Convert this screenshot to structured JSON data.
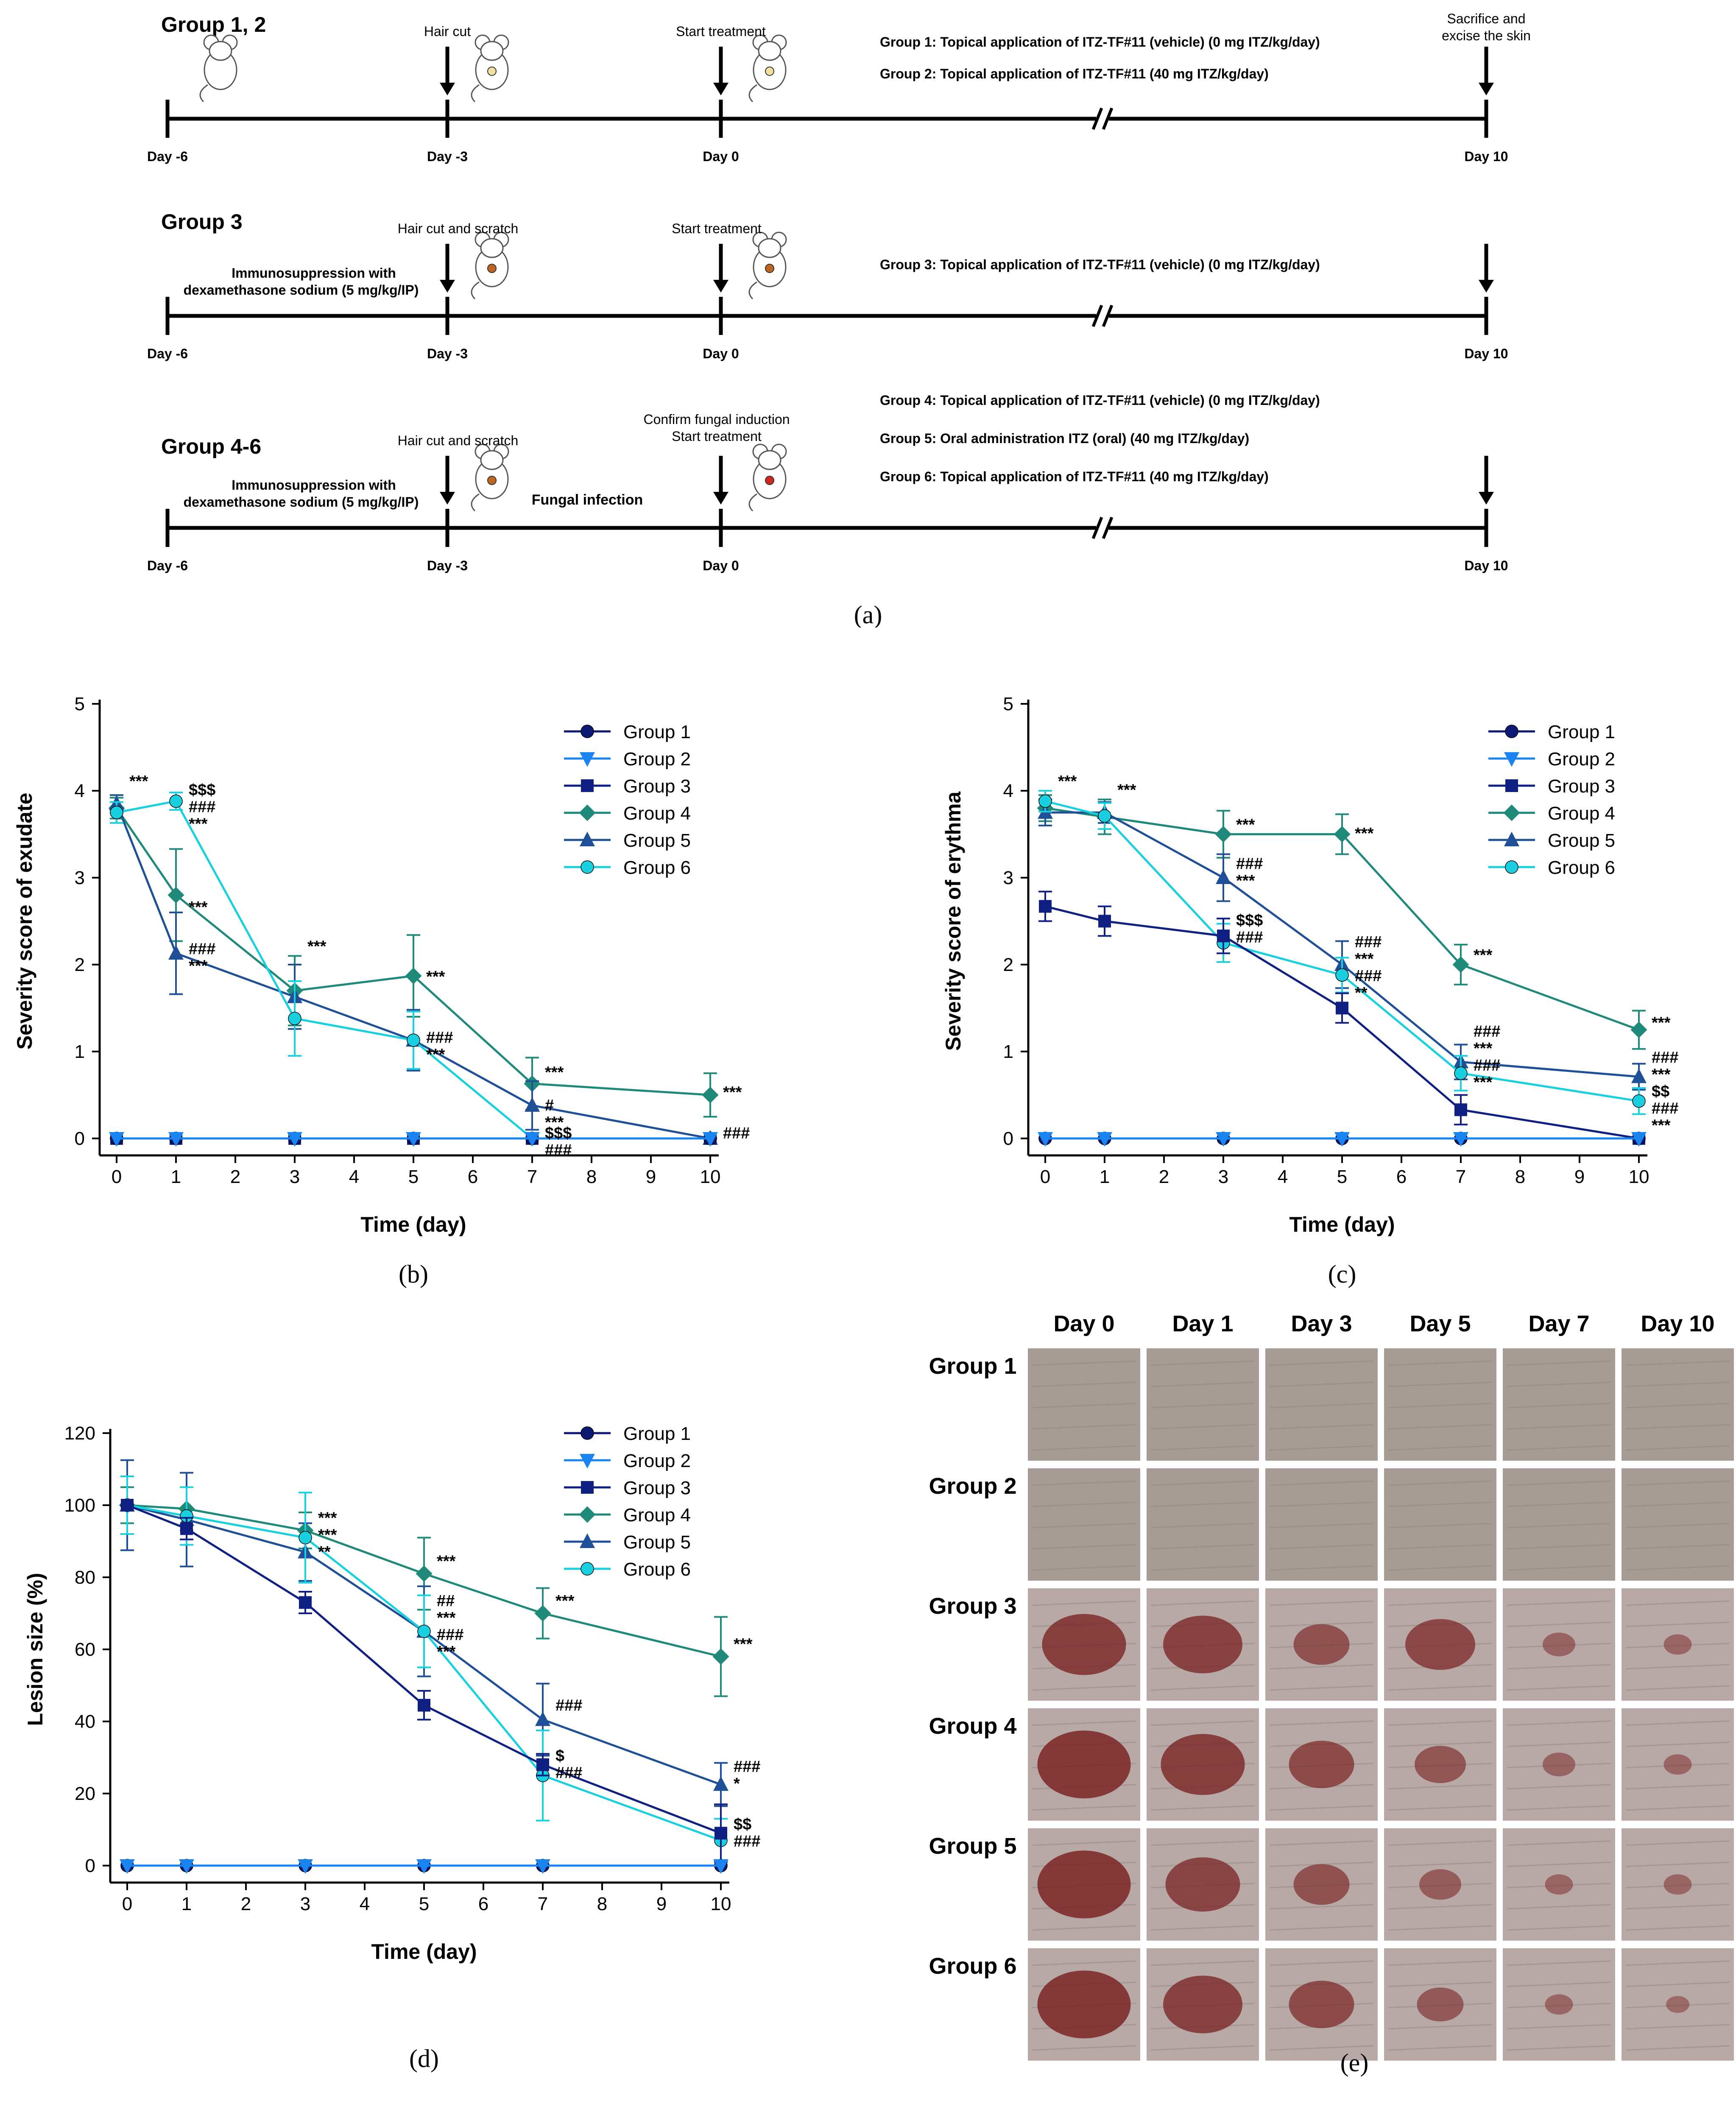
{
  "colors": {
    "g1": "#0d1a73",
    "g2": "#1a85f0",
    "g3": "#0f1f82",
    "g4": "#1f8a7a",
    "g5": "#1f4f96",
    "g6": "#19d0e0",
    "skin": "#a79d96",
    "wound": "#7a2424"
  },
  "panel_a": {
    "caption": "(a)",
    "rows": [
      {
        "group_label": "Group 1, 2",
        "ticks": [
          "Day -6",
          "Day -3",
          "Day 0",
          "Day 10"
        ],
        "arrow_labels": [
          "Hair cut",
          "Start treatment",
          "Sacrifice and",
          "excise the skin"
        ],
        "treatments": [
          "Group 1: Topical application of ITZ-TF#11 (vehicle) (0 mg ITZ/kg/day)",
          "Group 2: Topical application of ITZ-TF#11 (40 mg ITZ/kg/day)"
        ]
      },
      {
        "group_label": "Group 3",
        "ticks": [
          "Day -6",
          "Day -3",
          "Day 0",
          "Day 10"
        ],
        "arrow_labels": [
          "Hair cut and scratch",
          "Start treatment"
        ],
        "immuno": [
          "Immunosuppression with",
          "dexamethasone sodium (5 mg/kg/IP)"
        ],
        "treatments": [
          "Group 3: Topical application of ITZ-TF#11 (vehicle) (0 mg ITZ/kg/day)"
        ]
      },
      {
        "group_label": "Group 4-6",
        "ticks": [
          "Day -6",
          "Day -3",
          "Day 0",
          "Day 10"
        ],
        "arrow_labels": [
          "Hair cut and scratch",
          "Confirm  fungal induction",
          "Start treatment"
        ],
        "immuno": [
          "Immunosuppression with",
          "dexamethasone sodium (5 mg/kg/IP)"
        ],
        "infection": "Fungal infection",
        "treatments": [
          "Group 4: Topical application of ITZ-TF#11 (vehicle) (0 mg ITZ/kg/day)",
          "Group 5: Oral administration ITZ (oral) (40 mg ITZ/kg/day)",
          "Group 6: Topical application of ITZ-TF#11 (40 mg ITZ/kg/day)"
        ]
      }
    ]
  },
  "chart_data": [
    {
      "id": "b",
      "type": "line",
      "caption": "(b)",
      "xlabel": "Time (day)",
      "ylabel": "Severity score of exudate",
      "xlim": [
        0,
        10
      ],
      "ylim": [
        0,
        5
      ],
      "xticks": [
        0,
        1,
        2,
        3,
        4,
        5,
        6,
        7,
        8,
        9,
        10
      ],
      "yticks": [
        0,
        1,
        2,
        3,
        4,
        5
      ],
      "legend": [
        "Group 1",
        "Group 2",
        "Group 3",
        "Group 4",
        "Group 5",
        "Group 6"
      ],
      "series": [
        {
          "name": "Group 1",
          "x": [
            0,
            1,
            3,
            5,
            7,
            10
          ],
          "y": [
            0,
            0,
            0,
            0,
            0,
            0
          ],
          "err": [
            0,
            0,
            0,
            0,
            0,
            0
          ]
        },
        {
          "name": "Group 2",
          "x": [
            0,
            1,
            3,
            5,
            7,
            10
          ],
          "y": [
            0,
            0,
            0,
            0,
            0,
            0
          ],
          "err": [
            0,
            0,
            0,
            0,
            0,
            0
          ]
        },
        {
          "name": "Group 3",
          "x": [
            0,
            1,
            3,
            5,
            7,
            10
          ],
          "y": [
            0,
            0,
            0,
            0,
            0,
            0
          ],
          "err": [
            0,
            0,
            0,
            0,
            0,
            0
          ]
        },
        {
          "name": "Group 4",
          "x": [
            0,
            1,
            3,
            5,
            7,
            10
          ],
          "y": [
            3.8,
            2.8,
            1.7,
            1.87,
            0.63,
            0.5
          ],
          "err": [
            0.12,
            0.53,
            0.4,
            0.47,
            0.3,
            0.25
          ]
        },
        {
          "name": "Group 5",
          "x": [
            0,
            1,
            3,
            5,
            7,
            10
          ],
          "y": [
            3.85,
            2.13,
            1.63,
            1.13,
            0.38,
            0
          ],
          "err": [
            0.1,
            0.47,
            0.37,
            0.35,
            0.28,
            0
          ]
        },
        {
          "name": "Group 6",
          "x": [
            0,
            1,
            3,
            5,
            7,
            10
          ],
          "y": [
            3.75,
            3.88,
            1.38,
            1.13,
            0,
            0
          ],
          "err": [
            0.12,
            0.1,
            0.43,
            0.33,
            0,
            0
          ]
        }
      ],
      "annotations": [
        {
          "x": 0,
          "y": 4.05,
          "lines": [
            "***"
          ]
        },
        {
          "x": 1,
          "y": 3.95,
          "lines": [
            "$$$",
            "###",
            "***"
          ]
        },
        {
          "x": 1,
          "y": 2.6,
          "lines": [
            "***"
          ]
        },
        {
          "x": 1,
          "y": 2.12,
          "lines": [
            "###",
            "***"
          ]
        },
        {
          "x": 3,
          "y": 2.15,
          "lines": [
            "***"
          ]
        },
        {
          "x": 5,
          "y": 1.8,
          "lines": [
            "***"
          ]
        },
        {
          "x": 5,
          "y": 1.1,
          "lines": [
            "###",
            "***"
          ]
        },
        {
          "x": 7,
          "y": 0.7,
          "lines": [
            "***"
          ]
        },
        {
          "x": 7,
          "y": 0.32,
          "lines": [
            "#",
            "***"
          ]
        },
        {
          "x": 7,
          "y": 0,
          "lines": [
            "$$$",
            "###"
          ]
        },
        {
          "x": 10,
          "y": 0.47,
          "lines": [
            "***"
          ]
        },
        {
          "x": 10,
          "y": 0,
          "lines": [
            "###"
          ]
        }
      ]
    },
    {
      "id": "c",
      "type": "line",
      "caption": "(c)",
      "xlabel": "Time (day)",
      "ylabel": "Severity score of erythma",
      "xlim": [
        0,
        10
      ],
      "ylim": [
        0,
        5
      ],
      "xticks": [
        0,
        1,
        2,
        3,
        4,
        5,
        6,
        7,
        8,
        9,
        10
      ],
      "yticks": [
        0,
        1,
        2,
        3,
        4,
        5
      ],
      "legend": [
        "Group 1",
        "Group 2",
        "Group 3",
        "Group 4",
        "Group 5",
        "Group 6"
      ],
      "series": [
        {
          "name": "Group 1",
          "x": [
            0,
            1,
            3,
            5,
            7,
            10
          ],
          "y": [
            0,
            0,
            0,
            0,
            0,
            0
          ],
          "err": [
            0,
            0,
            0,
            0,
            0,
            0
          ]
        },
        {
          "name": "Group 2",
          "x": [
            0,
            1,
            3,
            5,
            7,
            10
          ],
          "y": [
            0,
            0,
            0,
            0,
            0,
            0
          ],
          "err": [
            0,
            0,
            0,
            0,
            0,
            0
          ]
        },
        {
          "name": "Group 3",
          "x": [
            0,
            1,
            3,
            5,
            7,
            10
          ],
          "y": [
            2.67,
            2.5,
            2.33,
            1.5,
            0.33,
            0
          ],
          "err": [
            0.17,
            0.17,
            0.2,
            0.17,
            0.17,
            0
          ]
        },
        {
          "name": "Group 4",
          "x": [
            0,
            1,
            3,
            5,
            7,
            10
          ],
          "y": [
            3.8,
            3.7,
            3.5,
            3.5,
            2,
            1.25
          ],
          "err": [
            0.15,
            0.2,
            0.27,
            0.23,
            0.23,
            0.22
          ]
        },
        {
          "name": "Group 5",
          "x": [
            0,
            1,
            3,
            5,
            7,
            10
          ],
          "y": [
            3.75,
            3.75,
            3,
            2,
            0.88,
            0.71
          ],
          "err": [
            0.15,
            0.12,
            0.27,
            0.27,
            0.2,
            0.15
          ]
        },
        {
          "name": "Group 6",
          "x": [
            0,
            1,
            3,
            5,
            7,
            10
          ],
          "y": [
            3.88,
            3.71,
            2.25,
            1.88,
            0.75,
            0.43
          ],
          "err": [
            0.12,
            0.15,
            0.22,
            0.2,
            0.2,
            0.15
          ]
        }
      ],
      "annotations": [
        {
          "x": 0,
          "y": 4.05,
          "lines": [
            "***"
          ]
        },
        {
          "x": 1,
          "y": 3.95,
          "lines": [
            "***"
          ]
        },
        {
          "x": 3,
          "y": 3.55,
          "lines": [
            "***"
          ]
        },
        {
          "x": 3,
          "y": 3.1,
          "lines": [
            "###",
            "***"
          ]
        },
        {
          "x": 3,
          "y": 2.45,
          "lines": [
            "$$$",
            "###"
          ]
        },
        {
          "x": 5,
          "y": 3.45,
          "lines": [
            "***"
          ]
        },
        {
          "x": 5,
          "y": 2.2,
          "lines": [
            "###",
            "***",
            "###",
            "**"
          ]
        },
        {
          "x": 7,
          "y": 2.05,
          "lines": [
            "***"
          ]
        },
        {
          "x": 7,
          "y": 1.17,
          "lines": [
            "###",
            "***",
            "###",
            "***"
          ]
        },
        {
          "x": 10,
          "y": 1.27,
          "lines": [
            "***"
          ]
        },
        {
          "x": 10,
          "y": 0.87,
          "lines": [
            "###",
            "***",
            "$$",
            "###",
            "***"
          ]
        }
      ]
    },
    {
      "id": "d",
      "type": "line",
      "caption": "(d)",
      "xlabel": "Time (day)",
      "ylabel": "Lesion size (%)",
      "xlim": [
        0,
        10
      ],
      "ylim": [
        0,
        120
      ],
      "xticks": [
        0,
        1,
        2,
        3,
        4,
        5,
        6,
        7,
        8,
        9,
        10
      ],
      "yticks": [
        0,
        20,
        40,
        60,
        80,
        100,
        120
      ],
      "legend": [
        "Group 1",
        "Group 2",
        "Group 3",
        "Group 4",
        "Group 5",
        "Group 6"
      ],
      "series": [
        {
          "name": "Group 1",
          "x": [
            0,
            1,
            3,
            5,
            7,
            10
          ],
          "y": [
            0,
            0,
            0,
            0,
            0,
            0
          ],
          "err": [
            0,
            0,
            0,
            0,
            0,
            0
          ]
        },
        {
          "name": "Group 2",
          "x": [
            0,
            1,
            3,
            5,
            7,
            10
          ],
          "y": [
            0,
            0,
            0,
            0,
            0,
            0
          ],
          "err": [
            0,
            0,
            0,
            0,
            0,
            0
          ]
        },
        {
          "name": "Group 3",
          "x": [
            0,
            1,
            3,
            5,
            7,
            10
          ],
          "y": [
            100,
            93.5,
            73,
            44.5,
            28,
            9
          ],
          "err": [
            0,
            3,
            3,
            4,
            3,
            8
          ]
        },
        {
          "name": "Group 4",
          "x": [
            0,
            1,
            3,
            5,
            7,
            10
          ],
          "y": [
            100,
            99,
            93,
            81,
            70,
            58
          ],
          "err": [
            5,
            6,
            5,
            10,
            7,
            11
          ]
        },
        {
          "name": "Group 5",
          "x": [
            0,
            1,
            3,
            5,
            7,
            10
          ],
          "y": [
            100,
            96,
            87,
            65,
            40.5,
            22.5
          ],
          "err": [
            12.5,
            13,
            8,
            12.5,
            10,
            6
          ]
        },
        {
          "name": "Group 6",
          "x": [
            0,
            1,
            3,
            5,
            7,
            10
          ],
          "y": [
            100,
            97,
            91,
            65,
            25,
            7
          ],
          "err": [
            8,
            8,
            12.5,
            10,
            12.5,
            6
          ]
        }
      ],
      "annotations": [
        {
          "x": 3,
          "y": 95,
          "lines": [
            "***",
            "***",
            "**"
          ]
        },
        {
          "x": 5,
          "y": 83,
          "lines": [
            "***"
          ]
        },
        {
          "x": 5,
          "y": 72,
          "lines": [
            "##",
            "***",
            "###",
            "***"
          ]
        },
        {
          "x": 7,
          "y": 72,
          "lines": [
            "***"
          ]
        },
        {
          "x": 7,
          "y": 43,
          "lines": [
            "###"
          ]
        },
        {
          "x": 7,
          "y": 29,
          "lines": [
            "$",
            "###"
          ]
        },
        {
          "x": 10,
          "y": 60,
          "lines": [
            "***"
          ]
        },
        {
          "x": 10,
          "y": 26,
          "lines": [
            "###",
            "*"
          ]
        },
        {
          "x": 10,
          "y": 10,
          "lines": [
            "$$",
            "###"
          ]
        }
      ]
    }
  ],
  "panel_e": {
    "caption": "(e)",
    "days": [
      "Day 0",
      "Day 1",
      "Day 3",
      "Day 5",
      "Day 7",
      "Day 10"
    ],
    "groups": [
      "Group 1",
      "Group 2",
      "Group 3",
      "Group 4",
      "Group 5",
      "Group 6"
    ],
    "lesion_size": [
      [
        0,
        0,
        0,
        0,
        0,
        0
      ],
      [
        0,
        0,
        0,
        0,
        0,
        0
      ],
      [
        0.9,
        0.85,
        0.6,
        0.75,
        0.35,
        0.3
      ],
      [
        1.0,
        0.9,
        0.7,
        0.55,
        0.35,
        0.3
      ],
      [
        1.0,
        0.8,
        0.6,
        0.45,
        0.3,
        0.3
      ],
      [
        1.0,
        0.85,
        0.7,
        0.5,
        0.3,
        0.25
      ]
    ]
  }
}
